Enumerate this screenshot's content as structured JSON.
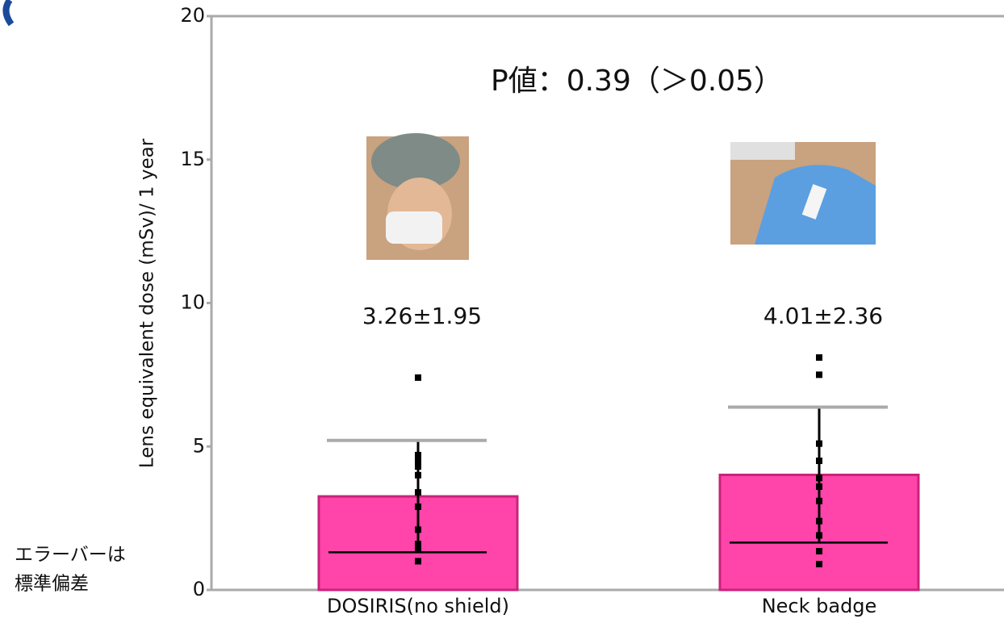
{
  "chart_data": {
    "type": "bar",
    "y_label": "Lens equivalent dose (mSv)/ 1 year",
    "annotation": "P値：0.39（＞0.05）",
    "note": [
      "エラーバーは",
      "標準偏差"
    ],
    "categories": [
      "DOSIRIS(no shield)",
      "Neck badge"
    ],
    "values": [
      3.26,
      4.01
    ],
    "errors": [
      1.95,
      2.36
    ],
    "value_labels": [
      "3.26±1.95",
      "4.01±2.36"
    ],
    "points": [
      [
        7.4,
        4.7,
        4.5,
        4.3,
        4.0,
        3.4,
        2.9,
        2.1,
        1.6,
        1.4,
        1.0
      ],
      [
        8.1,
        7.5,
        5.1,
        4.5,
        3.9,
        3.6,
        3.1,
        2.4,
        1.9,
        1.35,
        0.9
      ]
    ],
    "color": "#ff44aa",
    "ylim": [
      0,
      20
    ],
    "yticks": [
      0,
      5,
      10,
      15,
      20
    ]
  }
}
